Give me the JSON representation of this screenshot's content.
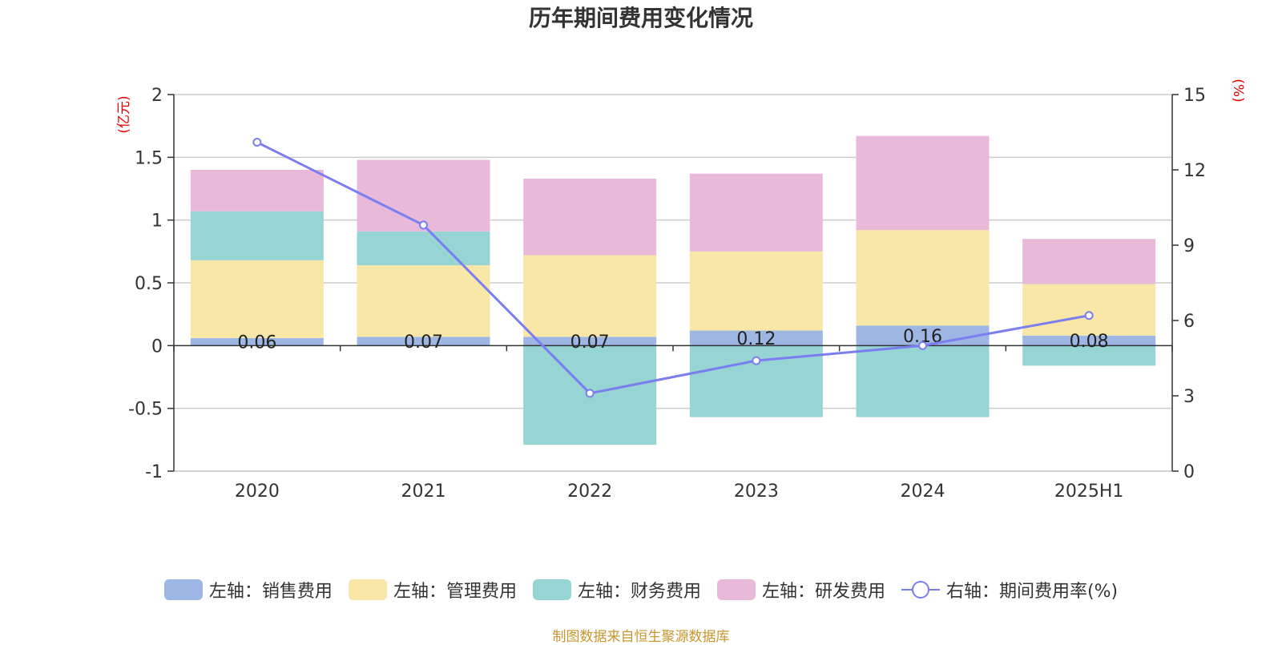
{
  "chart_data": {
    "type": "bar",
    "title": "历年期间费用变化情况",
    "categories": [
      "2020",
      "2021",
      "2022",
      "2023",
      "2024",
      "2025H1"
    ],
    "series": [
      {
        "name": "左轴：销售费用",
        "axis": "left",
        "stack": "total",
        "color": "#9db6e3",
        "values": [
          0.06,
          0.07,
          0.07,
          0.12,
          0.16,
          0.08
        ],
        "labels": [
          "0.06",
          "0.07",
          "0.07",
          "0.12",
          "0.16",
          "0.08"
        ]
      },
      {
        "name": "左轴：管理费用",
        "axis": "left",
        "stack": "total",
        "color": "#f9e7a8",
        "values": [
          0.62,
          0.57,
          0.65,
          0.63,
          0.76,
          0.41
        ]
      },
      {
        "name": "左轴：财务费用",
        "axis": "left",
        "stack": "total",
        "color": "#97d4d4",
        "values": [
          0.39,
          0.27,
          -0.79,
          -0.57,
          -0.57,
          -0.16
        ]
      },
      {
        "name": "左轴：研发费用",
        "axis": "left",
        "stack": "total",
        "color": "#e8b9d9",
        "values": [
          0.33,
          0.57,
          0.61,
          0.62,
          0.75,
          0.36
        ]
      },
      {
        "name": "右轴：期间费用率(%)",
        "axis": "right",
        "type": "line",
        "color": "#7b7ef0",
        "values": [
          13.1,
          9.8,
          3.1,
          4.4,
          5.0,
          6.2
        ]
      }
    ],
    "yleft": {
      "unit": "(亿元)",
      "ylim": [
        -1,
        2
      ],
      "ticks": [
        "-1",
        "-0.5",
        "0",
        "0.5",
        "1",
        "1.5",
        "2"
      ]
    },
    "yright": {
      "unit": "(%)",
      "ylim": [
        0,
        15
      ],
      "ticks": [
        "0",
        "3",
        "6",
        "9",
        "12",
        "15"
      ]
    },
    "grid": true,
    "legend_position": "bottom"
  },
  "legend": [
    {
      "label": "左轴：销售费用",
      "color": "#9db6e3",
      "kind": "box"
    },
    {
      "label": "左轴：管理费用",
      "color": "#f9e7a8",
      "kind": "box"
    },
    {
      "label": "左轴：财务费用",
      "color": "#97d4d4",
      "kind": "box"
    },
    {
      "label": "左轴：研发费用",
      "color": "#e8b9d9",
      "kind": "box"
    },
    {
      "label": "右轴：期间费用率(%)",
      "color": "#7b7ef0",
      "kind": "line"
    }
  ],
  "source": "制图数据来自恒生聚源数据库"
}
